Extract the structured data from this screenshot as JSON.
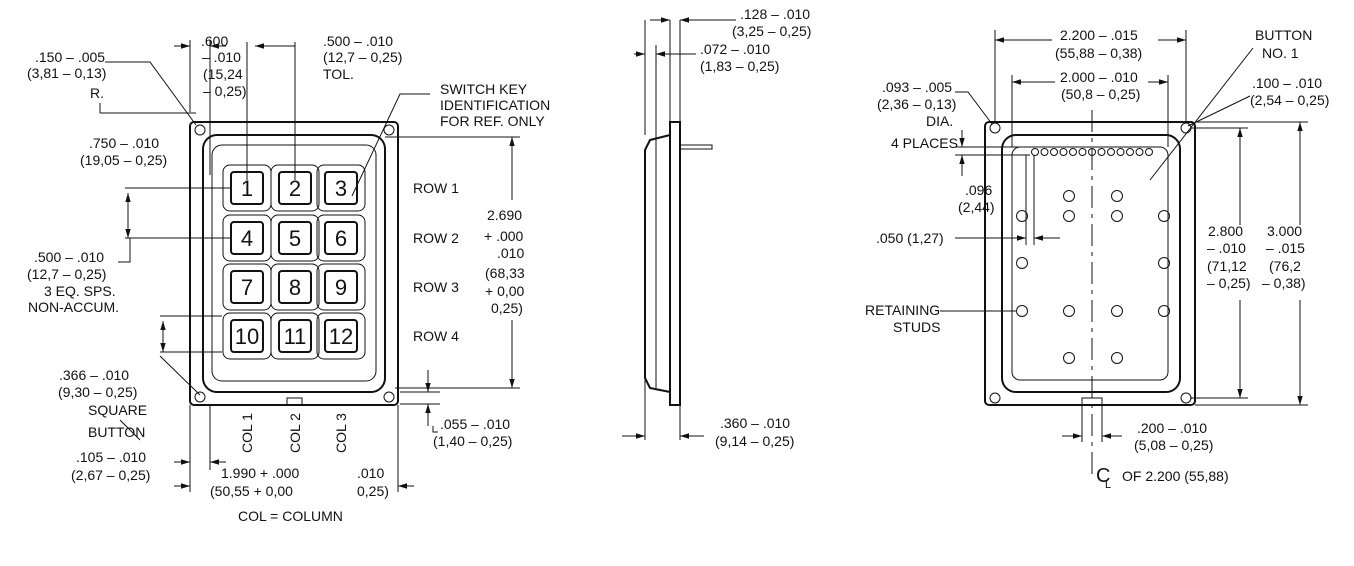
{
  "front_view": {
    "labels": [
      ".150 – .005",
      "(3,81 – 0,13)",
      "R.",
      ".600",
      "– .010",
      "(15,24",
      "– 0,25)",
      ".500 – .010",
      "(12,7 – 0,25)",
      "TOL.",
      "SWITCH KEY",
      "IDENTIFICATION",
      "FOR REF. ONLY",
      ".750 – .010",
      "(19,05 – 0,25)",
      ".500 – .010",
      "(12,7 – 0,25)",
      "3 EQ. SPS.",
      "NON-ACCUM.",
      ".366 – .010",
      "(9,30 – 0,25)",
      "SQUARE",
      "BUTTON",
      ".105 – .010",
      "(2,67 – 0,25)",
      "1.990 + .000",
      ".010",
      "(50,55 + 0,00",
      "0,25)",
      "COL = COLUMN",
      "2.690",
      "+ .000",
      ".010",
      "(68,33",
      "+ 0,00",
      "0,25)",
      ".055 – .010",
      "(1,40 – 0,25)"
    ],
    "keys": [
      "1",
      "2",
      "3",
      "4",
      "5",
      "6",
      "7",
      "8",
      "9",
      "10",
      "11",
      "12"
    ],
    "rows": [
      "ROW 1",
      "ROW 2",
      "ROW 3",
      "ROW 4"
    ],
    "cols": [
      "COL 1",
      "COL 2",
      "COL 3"
    ]
  },
  "side_view": {
    "labels": [
      ".128 – .010",
      "(3,25 – 0,25)",
      ".072 – .010",
      "(1,83 – 0,25)",
      ".360 – .010",
      "(9,14 – 0,25)"
    ]
  },
  "back_view": {
    "labels": [
      "2.200 – .015",
      "(55,88 – 0,38)",
      "BUTTON",
      "NO. 1",
      ".093 – .005",
      "(2,36 – 0,13)",
      "DIA.",
      "4 PLACES",
      "2.000 – .010",
      "(50,8 – 0,25)",
      ".100 – .010",
      "(2,54 – 0,25)",
      ".096",
      "(2,44)",
      ".050 (1,27)",
      "2.800",
      "– .010",
      "(71,12",
      "– 0,25)",
      "3.000",
      "– .015",
      "(76,2",
      "– 0,38)",
      "RETAINING",
      "STUDS",
      ".200 – .010",
      "(5,08 – 0,25)",
      "C",
      "L",
      "OF 2.200 (55,88)"
    ]
  }
}
